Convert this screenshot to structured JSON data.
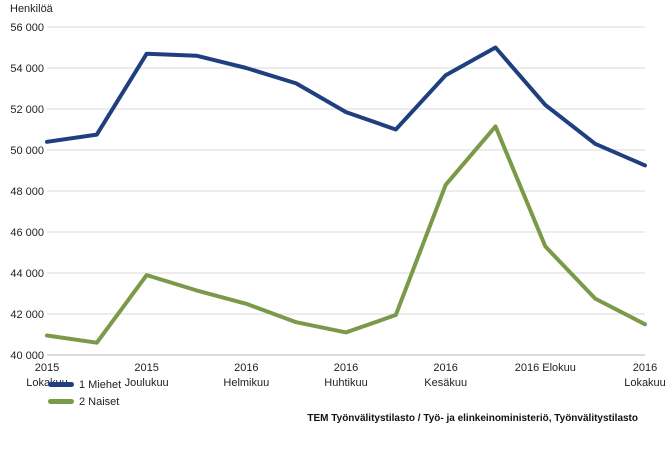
{
  "chart_data": {
    "type": "line",
    "ylabel": "Henkilöä",
    "ylim": [
      40000,
      56000
    ],
    "yticks": [
      "40 000",
      "42 000",
      "44 000",
      "46 000",
      "48 000",
      "50 000",
      "52 000",
      "54 000",
      "56 000"
    ],
    "x": [
      "2015-10",
      "2015-11",
      "2015-12",
      "2016-01",
      "2016-02",
      "2016-03",
      "2016-04",
      "2016-05",
      "2016-06",
      "2016-07",
      "2016-08",
      "2016-09",
      "2016-10"
    ],
    "xtick_labels": [
      {
        "index": 0,
        "lines": [
          "2015",
          "Lokakuu"
        ]
      },
      {
        "index": 2,
        "lines": [
          "2015",
          "Joulukuu"
        ]
      },
      {
        "index": 4,
        "lines": [
          "2016",
          "Helmikuu"
        ]
      },
      {
        "index": 6,
        "lines": [
          "2016",
          "Huhtikuu"
        ]
      },
      {
        "index": 8,
        "lines": [
          "2016",
          "Kesäkuu"
        ]
      },
      {
        "index": 10,
        "lines": [
          "2016 Elokuu"
        ]
      },
      {
        "index": 12,
        "lines": [
          "2016",
          "Lokakuu"
        ]
      }
    ],
    "series": [
      {
        "name": "1 Miehet",
        "color": "#1f3f7f",
        "values": [
          50400,
          50750,
          54700,
          54600,
          54000,
          53250,
          51850,
          51000,
          53650,
          55000,
          52200,
          50300,
          49250
        ]
      },
      {
        "name": "2 Naiset",
        "color": "#7a9a4a",
        "values": [
          40950,
          40600,
          43900,
          43150,
          42500,
          41600,
          41100,
          41950,
          48300,
          51150,
          45300,
          42750,
          41500
        ]
      }
    ],
    "grid": true,
    "legend_position": "bottom-left",
    "source": "TEM Työnvälitystilasto / Työ- ja elinkeinoministeriö, Työnvälitystilasto"
  }
}
